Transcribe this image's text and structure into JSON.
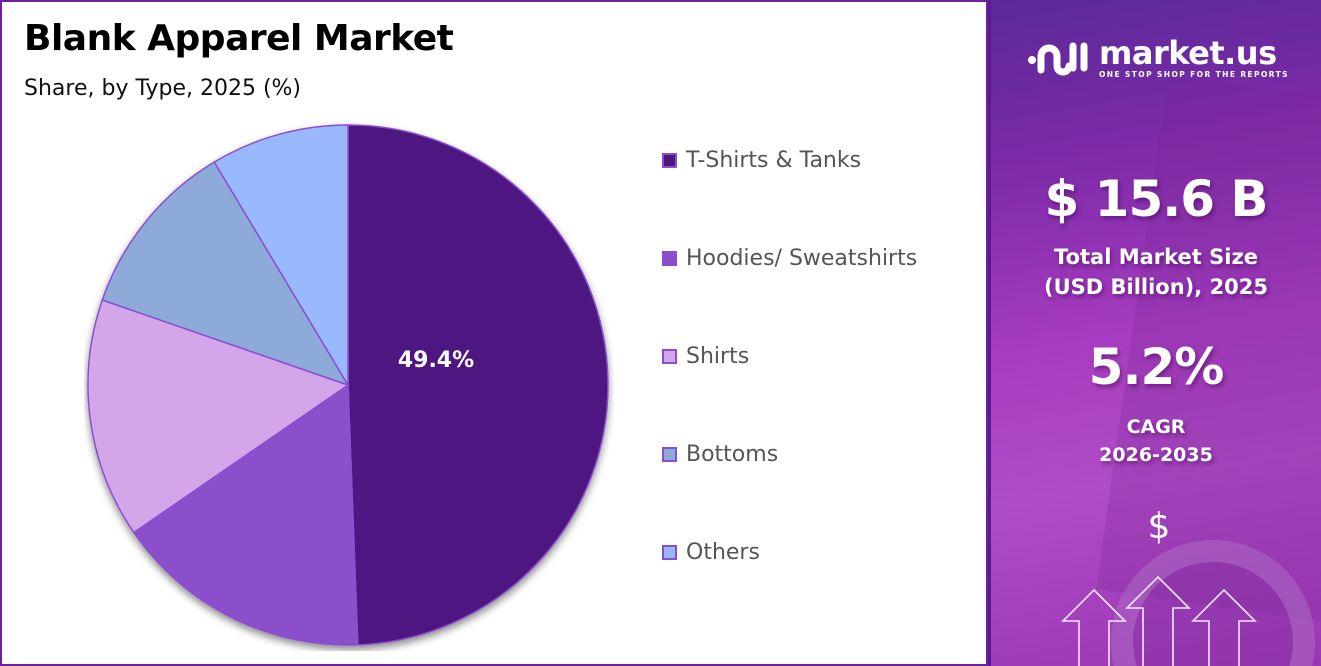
{
  "header": {
    "title": "Blank Apparel Market",
    "subtitle": "Share, by Type, 2025 (%)"
  },
  "chart_data": {
    "type": "pie",
    "title": "Blank Apparel Market",
    "subtitle": "Share, by Type, 2025 (%)",
    "categories": [
      "T-Shirts & Tanks",
      "Hoodies/ Sweatshirts",
      "Shirts",
      "Bottoms",
      "Others"
    ],
    "values": [
      49.4,
      16.0,
      14.9,
      11.1,
      8.6
    ],
    "colors": [
      "#4e1780",
      "#8b4fcb",
      "#d3a6ea",
      "#8eaad9",
      "#99b8fd"
    ],
    "data_labels": [
      "49.4%",
      "",
      "",
      "",
      ""
    ],
    "start_angle": 0,
    "direction": "clockwise",
    "legend_position": "right"
  },
  "legend": {
    "items": [
      {
        "label": "T-Shirts & Tanks",
        "color": "#4e1780"
      },
      {
        "label": "Hoodies/ Sweatshirts",
        "color": "#8b4fcb"
      },
      {
        "label": "Shirts",
        "color": "#d3a6ea"
      },
      {
        "label": "Bottoms",
        "color": "#8eaad9"
      },
      {
        "label": "Others",
        "color": "#99b8fd"
      }
    ]
  },
  "pie_label": "49.4%",
  "sidebar": {
    "brand": {
      "name": "market.us",
      "tagline": "ONE STOP SHOP FOR THE REPORTS"
    },
    "market_size": {
      "value": "$ 15.6 B",
      "label_line1": "Total Market Size",
      "label_line2": "(USD Billion), 2025"
    },
    "cagr": {
      "value": "5.2%",
      "label_line1": "CAGR",
      "label_line2": "2026-2035"
    },
    "growth_icon_symbol": "$"
  },
  "colors": {
    "border": "#6e1fa0",
    "accent": "#7a2aa6"
  }
}
